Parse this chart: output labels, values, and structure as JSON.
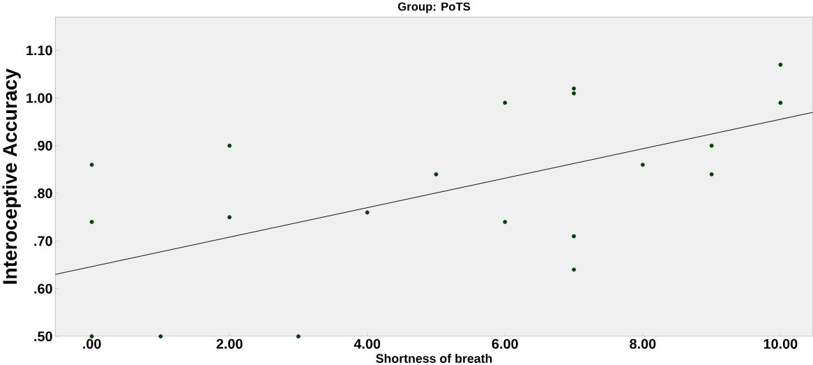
{
  "chart_data": {
    "type": "scatter",
    "title": "Group: PoTS",
    "xlabel": "Shortness of breath",
    "ylabel": "Interoceptive Accuracy",
    "series": [
      {
        "color": "#0b3d0b",
        "x": [
          0,
          0,
          0,
          1,
          2,
          2,
          3,
          4,
          5,
          6,
          6,
          7,
          7,
          7,
          7,
          8,
          9,
          9,
          10,
          10
        ],
        "values": [
          0.86,
          0.74,
          0.5,
          0.5,
          0.9,
          0.75,
          0.5,
          0.76,
          0.84,
          0.99,
          0.74,
          1.02,
          1.01,
          0.71,
          0.64,
          0.86,
          0.9,
          0.84,
          1.07,
          0.99
        ]
      },
      {
        "type": "line",
        "color": "#000000",
        "x": [
          -0.53,
          10.47
        ],
        "values": [
          0.63,
          0.97
        ]
      }
    ],
    "xlim": [
      -0.53,
      10.47
    ],
    "ylim": [
      0.5,
      1.17
    ],
    "xticks": [
      {
        "value": 0,
        "label": ".00"
      },
      {
        "value": 2,
        "label": "2.00"
      },
      {
        "value": 4,
        "label": "4.00"
      },
      {
        "value": 6,
        "label": "6.00"
      },
      {
        "value": 8,
        "label": "8.00"
      },
      {
        "value": 10,
        "label": "10.00"
      }
    ],
    "yticks": [
      {
        "value": 0.5,
        "label": ".50"
      },
      {
        "value": 0.6,
        "label": ".60"
      },
      {
        "value": 0.7,
        "label": ".70"
      },
      {
        "value": 0.8,
        "label": ".80"
      },
      {
        "value": 0.9,
        "label": ".90"
      },
      {
        "value": 1.0,
        "label": "1.00"
      },
      {
        "value": 1.1,
        "label": "1.10"
      }
    ],
    "grid": false,
    "line_style": "solid"
  }
}
